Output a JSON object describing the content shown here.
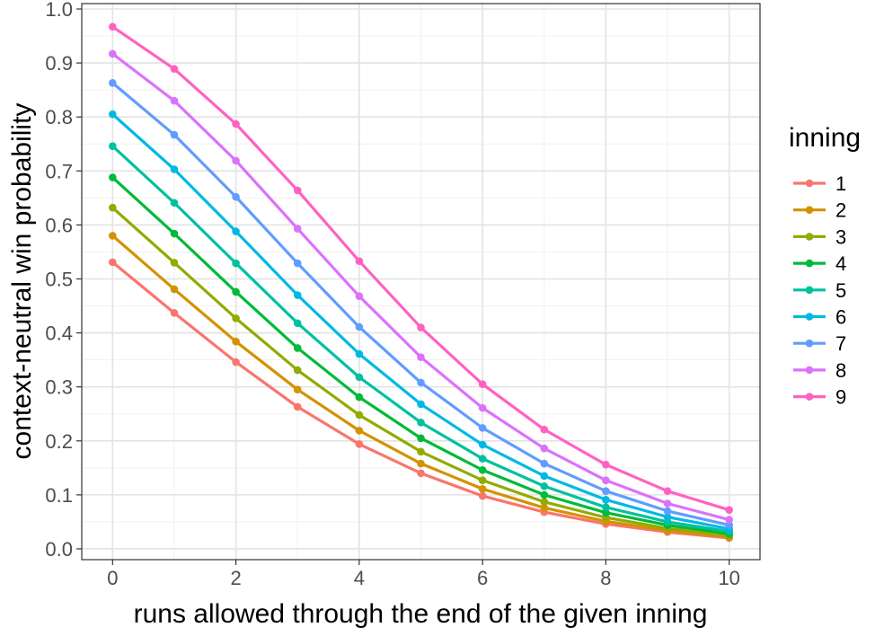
{
  "chart_data": {
    "type": "line",
    "title": "",
    "xlabel": "runs allowed through the end of the given inning",
    "ylabel": "context-neutral win probability",
    "xlim": [
      -0.5,
      10.5
    ],
    "ylim": [
      -0.02,
      1.01
    ],
    "x_ticks": [
      0,
      2,
      4,
      6,
      8,
      10
    ],
    "x_tick_labels": [
      "0",
      "2",
      "4",
      "6",
      "8",
      "10"
    ],
    "y_ticks": [
      0.0,
      0.1,
      0.2,
      0.3,
      0.4,
      0.5,
      0.6,
      0.7,
      0.8,
      0.9,
      1.0
    ],
    "y_tick_labels": [
      "0.0",
      "0.1",
      "0.2",
      "0.3",
      "0.4",
      "0.5",
      "0.6",
      "0.7",
      "0.8",
      "0.9",
      "1.0"
    ],
    "grid": true,
    "legend": {
      "title": "inning",
      "position": "right"
    },
    "x": [
      0,
      1,
      2,
      3,
      4,
      5,
      6,
      7,
      8,
      9,
      10
    ],
    "series": [
      {
        "name": "1",
        "color": "#F8766D",
        "values": [
          0.531,
          0.437,
          0.346,
          0.263,
          0.194,
          0.14,
          0.098,
          0.068,
          0.046,
          0.031,
          0.02
        ]
      },
      {
        "name": "2",
        "color": "#D39200",
        "values": [
          0.58,
          0.481,
          0.384,
          0.295,
          0.219,
          0.158,
          0.111,
          0.076,
          0.051,
          0.034,
          0.022
        ]
      },
      {
        "name": "3",
        "color": "#93AA00",
        "values": [
          0.632,
          0.53,
          0.427,
          0.331,
          0.248,
          0.18,
          0.127,
          0.087,
          0.058,
          0.038,
          0.025
        ]
      },
      {
        "name": "4",
        "color": "#00BA38",
        "values": [
          0.688,
          0.584,
          0.476,
          0.372,
          0.281,
          0.205,
          0.146,
          0.1,
          0.067,
          0.044,
          0.028
        ]
      },
      {
        "name": "5",
        "color": "#00C19F",
        "values": [
          0.746,
          0.641,
          0.529,
          0.418,
          0.318,
          0.234,
          0.167,
          0.116,
          0.077,
          0.05,
          0.032
        ]
      },
      {
        "name": "6",
        "color": "#00B9E3",
        "values": [
          0.805,
          0.703,
          0.588,
          0.47,
          0.361,
          0.268,
          0.193,
          0.135,
          0.091,
          0.059,
          0.037
        ]
      },
      {
        "name": "7",
        "color": "#619CFF",
        "values": [
          0.863,
          0.767,
          0.652,
          0.529,
          0.411,
          0.308,
          0.224,
          0.158,
          0.107,
          0.07,
          0.044
        ]
      },
      {
        "name": "8",
        "color": "#DB72FB",
        "values": [
          0.917,
          0.83,
          0.719,
          0.593,
          0.468,
          0.355,
          0.261,
          0.186,
          0.127,
          0.084,
          0.054
        ]
      },
      {
        "name": "9",
        "color": "#FF61C3",
        "values": [
          0.967,
          0.889,
          0.787,
          0.664,
          0.533,
          0.41,
          0.305,
          0.221,
          0.156,
          0.107,
          0.072
        ]
      }
    ]
  }
}
